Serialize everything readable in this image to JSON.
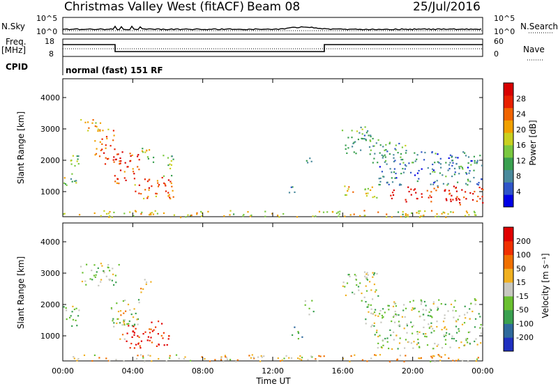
{
  "header": {
    "station": "Christmas Valley West (fitACF)",
    "beam": "Beam 08",
    "date": "25/Jul/2016"
  },
  "summary_panels": {
    "nsky_label": "N.Sky",
    "nsky_ticks": [
      "10^5",
      "10^0"
    ],
    "nsearch_label": "N.Search",
    "nsearch_ticks": [
      "10^5",
      "10^0"
    ],
    "freq_label": "Freq.",
    "freq_unit": "[MHz]",
    "freq_ticks": [
      "18",
      "8"
    ],
    "nave_label": "Nave",
    "nave_ticks": [
      "60",
      "0"
    ],
    "cpid_label": "CPID",
    "cpid_text": "normal (fast) 151 RF"
  },
  "chart_data": [
    {
      "type": "heatmap",
      "name": "power",
      "ylabel": "Slant Range [km]",
      "xlim_hours": [
        0,
        24
      ],
      "ylim": [
        200,
        4600
      ],
      "y_ticks": [
        "1000",
        "2000",
        "3000",
        "4000"
      ],
      "colorbar": {
        "label": "Power [dB]",
        "ticks": [
          "28",
          "24",
          "20",
          "16",
          "12",
          "8",
          "4"
        ],
        "colors": [
          "#0000e6",
          "#2f55c8",
          "#4a8a9c",
          "#3aa050",
          "#7ac840",
          "#c8d020",
          "#f0a000",
          "#f06400",
          "#e82000",
          "#d80000"
        ]
      },
      "blobs": [
        {
          "t0": 1.0,
          "t1": 2.2,
          "r0": 2900,
          "r1": 3350,
          "level": 0.6
        },
        {
          "t0": 1.8,
          "t1": 3.0,
          "r0": 1900,
          "r1": 3100,
          "level": 0.75
        },
        {
          "t0": 2.9,
          "t1": 4.4,
          "r0": 1200,
          "r1": 2300,
          "level": 0.85
        },
        {
          "t0": 3.8,
          "t1": 6.3,
          "r0": 800,
          "r1": 1500,
          "level": 0.75
        },
        {
          "t0": 0.0,
          "t1": 0.9,
          "r0": 1200,
          "r1": 2200,
          "level": 0.45
        },
        {
          "t0": 4.5,
          "t1": 5.5,
          "r0": 1900,
          "r1": 2400,
          "level": 0.5
        },
        {
          "t0": 5.6,
          "t1": 6.3,
          "r0": 1500,
          "r1": 2300,
          "level": 0.4
        },
        {
          "t0": 13.8,
          "t1": 14.2,
          "r0": 1700,
          "r1": 2200,
          "level": 0.3
        },
        {
          "t0": 15.9,
          "t1": 17.8,
          "r0": 2200,
          "r1": 3100,
          "level": 0.35
        },
        {
          "t0": 16.0,
          "t1": 18.0,
          "r0": 800,
          "r1": 1200,
          "level": 0.6
        },
        {
          "t0": 17.5,
          "t1": 19.6,
          "r0": 1900,
          "r1": 2700,
          "level": 0.35
        },
        {
          "t0": 18.0,
          "t1": 24.0,
          "r0": 1200,
          "r1": 2300,
          "level": 0.25
        },
        {
          "t0": 18.7,
          "t1": 22.6,
          "r0": 700,
          "r1": 1200,
          "level": 0.9
        },
        {
          "t0": 22.3,
          "t1": 24.0,
          "r0": 600,
          "r1": 1200,
          "level": 0.9
        },
        {
          "t0": 12.9,
          "t1": 13.4,
          "r0": 900,
          "r1": 1300,
          "level": 0.3
        },
        {
          "t0": 0.0,
          "t1": 24.0,
          "r0": 200,
          "r1": 420,
          "level": 0.55
        }
      ]
    },
    {
      "type": "heatmap",
      "name": "velocity",
      "ylabel": "Slant Range [km]",
      "xlabel": "Time UT",
      "xlim_hours": [
        0,
        24
      ],
      "ylim": [
        200,
        4600
      ],
      "x_ticks": [
        "00:00",
        "04:00",
        "08:00",
        "12:00",
        "16:00",
        "20:00",
        "00:00"
      ],
      "y_ticks": [
        "1000",
        "2000",
        "3000",
        "4000"
      ],
      "colorbar": {
        "label": "Velocity [m s⁻¹]",
        "ticks": [
          "200",
          "100",
          "50",
          "15",
          "-15",
          "-50",
          "-100",
          "-200"
        ],
        "colors": [
          "#2030c0",
          "#2f6a9c",
          "#3aa050",
          "#6ac030",
          "#c8c8c0",
          "#f0b020",
          "#f07000",
          "#f03000",
          "#e00000"
        ]
      },
      "blobs": [
        {
          "t0": 0.9,
          "t1": 3.2,
          "r0": 2600,
          "r1": 3350,
          "level": 0.44
        },
        {
          "t0": 0.0,
          "t1": 1.0,
          "r0": 1300,
          "r1": 2000,
          "level": 0.44
        },
        {
          "t0": 2.6,
          "t1": 4.4,
          "r0": 1300,
          "r1": 2200,
          "level": 0.44
        },
        {
          "t0": 3.2,
          "t1": 3.6,
          "r0": 900,
          "r1": 1900,
          "level": 0.6
        },
        {
          "t0": 3.6,
          "t1": 6.1,
          "r0": 600,
          "r1": 1500,
          "level": 0.9
        },
        {
          "t0": 4.4,
          "t1": 5.0,
          "r0": 2400,
          "r1": 2900,
          "level": 0.6
        },
        {
          "t0": 13.8,
          "t1": 14.3,
          "r0": 1700,
          "r1": 2200,
          "level": 0.44
        },
        {
          "t0": 13.0,
          "t1": 13.7,
          "r0": 900,
          "r1": 1300,
          "level": 0.3
        },
        {
          "t0": 15.9,
          "t1": 18.0,
          "r0": 2200,
          "r1": 3100,
          "level": 0.44
        },
        {
          "t0": 17.0,
          "t1": 24.0,
          "r0": 1300,
          "r1": 2200,
          "level": 0.44
        },
        {
          "t0": 17.8,
          "t1": 24.0,
          "r0": 600,
          "r1": 1300,
          "level": 0.44
        },
        {
          "t0": 0.0,
          "t1": 24.0,
          "r0": 200,
          "r1": 420,
          "level": 0.6
        }
      ]
    }
  ]
}
